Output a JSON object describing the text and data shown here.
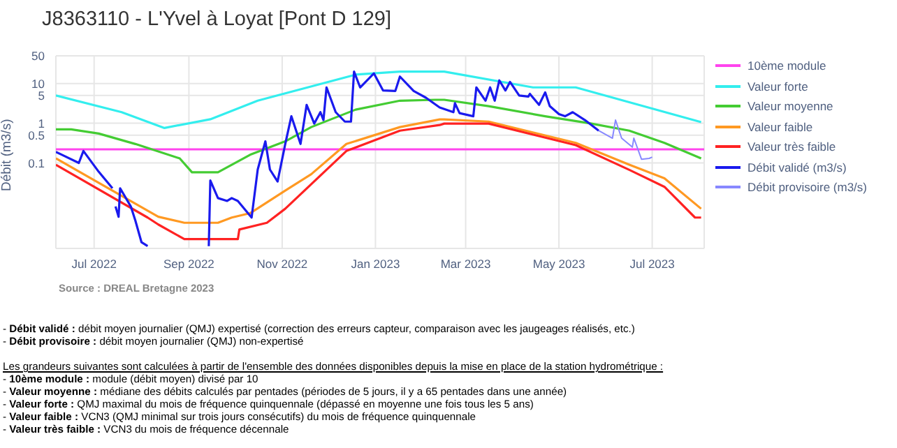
{
  "chart_data": {
    "type": "line",
    "title": "J8363110 - L'Yvel à Loyat [Pont D 129]",
    "ylabel": "Débit (m3/s)",
    "log": "y",
    "grid": true,
    "legend": "top right",
    "marker": "none",
    "line_style": "solid",
    "xlim": [
      "2022-06-06",
      "2023-08-04"
    ],
    "ylim": [
      0.0007,
      50
    ],
    "yticks": [
      0.1,
      0.5,
      1,
      5,
      10,
      50
    ],
    "xticks": [
      {
        "value": "2022-07-01",
        "label": "Jul 2022"
      },
      {
        "value": "2022-09-01",
        "label": "Sep 2022"
      },
      {
        "value": "2022-11-01",
        "label": "Nov 2022"
      },
      {
        "value": "2023-01-01",
        "label": "Jan 2023"
      },
      {
        "value": "2023-03-01",
        "label": "Mar 2023"
      },
      {
        "value": "2023-05-01",
        "label": "May 2023"
      },
      {
        "value": "2023-07-01",
        "label": "Jul 2023"
      }
    ],
    "series": [
      {
        "name": "10ème module",
        "color": "#ff44ee",
        "x": [
          "2022-06-06",
          "2023-08-04"
        ],
        "values": [
          0.22,
          0.22
        ]
      },
      {
        "name": "Valeur forte",
        "color": "#33eeee",
        "x": [
          "2022-06-06",
          "2022-07-19",
          "2022-08-16",
          "2022-09-15",
          "2022-10-16",
          "2022-12-19",
          "2023-01-17",
          "2023-02-15",
          "2023-04-14",
          "2023-05-12",
          "2023-08-02"
        ],
        "values": [
          5,
          1.9,
          0.76,
          1.26,
          3.7,
          16.8,
          20,
          20,
          8,
          8,
          1.07
        ]
      },
      {
        "name": "Valeur moyenne",
        "color": "#44cc33",
        "x": [
          "2022-06-06",
          "2022-06-16",
          "2022-07-04",
          "2022-07-28",
          "2022-08-26",
          "2022-09-03",
          "2022-09-20",
          "2022-10-11",
          "2022-11-03",
          "2022-11-20",
          "2022-12-19",
          "2023-01-17",
          "2023-02-09",
          "2023-02-15",
          "2023-03-16",
          "2023-04-22",
          "2023-05-21",
          "2023-06-16",
          "2023-07-09",
          "2023-08-02"
        ],
        "values": [
          0.7,
          0.7,
          0.55,
          0.3,
          0.13,
          0.058,
          0.058,
          0.16,
          0.35,
          0.8,
          2.2,
          3.7,
          3.9,
          3.9,
          2.7,
          1.5,
          1.0,
          0.65,
          0.32,
          0.13
        ]
      },
      {
        "name": "Valeur faible",
        "color": "#ff9922",
        "x": [
          "2022-06-06",
          "2022-08-12",
          "2022-08-29",
          "2022-09-20",
          "2022-09-29",
          "2022-10-11",
          "2022-11-03",
          "2022-11-20",
          "2022-12-13",
          "2023-01-17",
          "2023-02-12",
          "2023-02-15",
          "2023-03-16",
          "2023-05-12",
          "2023-06-16",
          "2023-07-09",
          "2023-08-02"
        ],
        "values": [
          0.13,
          0.0044,
          0.0031,
          0.0031,
          0.0042,
          0.0054,
          0.02,
          0.052,
          0.3,
          0.8,
          1.25,
          1.25,
          1.1,
          0.32,
          0.09,
          0.041,
          0.007
        ]
      },
      {
        "name": "Valeur très faible",
        "color": "#ff2222",
        "x": [
          "2022-06-06",
          "2022-08-05",
          "2022-08-12",
          "2022-08-29",
          "2022-10-03",
          "2022-10-04",
          "2022-10-22",
          "2022-11-03",
          "2022-12-13",
          "2023-01-17",
          "2023-02-12",
          "2023-02-15",
          "2023-03-16",
          "2023-05-12",
          "2023-06-16",
          "2023-07-09",
          "2023-07-29",
          "2023-08-02"
        ],
        "values": [
          0.09,
          0.0042,
          0.0028,
          0.0012,
          0.0012,
          0.0021,
          0.0031,
          0.007,
          0.2,
          0.65,
          0.9,
          0.98,
          0.98,
          0.28,
          0.067,
          0.025,
          0.0042,
          0.0042
        ]
      },
      {
        "name": "Débit validé (m3/s)",
        "color": "#1a1aee",
        "x": [
          "2022-06-06",
          "2022-06-10",
          "2022-06-21",
          "2022-06-24",
          "2022-07-04",
          "2022-07-13",
          "2022-07-14",
          "2022-07-15",
          "2022-07-17",
          "2022-07-18",
          "2022-07-25",
          "2022-07-28",
          "2022-08-01",
          "2022-08-05",
          "2022-08-06",
          "2022-09-13",
          "2022-09-14",
          "2022-09-15",
          "2022-09-20",
          "2022-09-26",
          "2022-09-29",
          "2022-10-03",
          "2022-10-12",
          "2022-10-16",
          "2022-10-21",
          "2022-10-24",
          "2022-10-29",
          "2022-11-03",
          "2022-11-07",
          "2022-11-13",
          "2022-11-17",
          "2022-11-22",
          "2022-11-26",
          "2022-11-28",
          "2022-11-30",
          "2022-12-06",
          "2022-12-12",
          "2022-12-16",
          "2022-12-18",
          "2022-12-22",
          "2022-12-31",
          "2023-01-06",
          "2023-01-14",
          "2023-01-17",
          "2023-01-26",
          "2023-02-03",
          "2023-02-12",
          "2023-02-21",
          "2023-02-22",
          "2023-02-25",
          "2023-03-06",
          "2023-03-08",
          "2023-03-14",
          "2023-03-17",
          "2023-03-20",
          "2023-03-23",
          "2023-03-27",
          "2023-03-30",
          "2023-04-05",
          "2023-04-11",
          "2023-04-12",
          "2023-04-18",
          "2023-04-22",
          "2023-04-25",
          "2023-05-01",
          "2023-05-05",
          "2023-05-10",
          "2023-05-18",
          "2023-05-27"
        ],
        "values": [
          0.19,
          0.16,
          0.1,
          0.2,
          0.06,
          0.023,
          null,
          0.008,
          0.0044,
          0.023,
          0.008,
          0.0035,
          0.001,
          0.0008,
          null,
          null,
          0.0008,
          0.036,
          0.013,
          0.011,
          0.013,
          0.011,
          0.0042,
          0.068,
          0.35,
          0.068,
          0.034,
          0.3,
          1.5,
          0.3,
          2.9,
          0.98,
          1.9,
          1.2,
          8,
          1.9,
          1.1,
          1.1,
          20,
          8,
          18,
          6.7,
          6.5,
          15,
          6.5,
          4.4,
          2.5,
          1.9,
          3.2,
          1.8,
          1.5,
          8,
          3.7,
          8,
          3.7,
          12,
          6.7,
          11,
          5,
          4.7,
          5.5,
          2.9,
          6,
          2.7,
          1.7,
          1.5,
          1.9,
          1.2,
          0.65
        ]
      },
      {
        "name": "Débit provisoire (m3/s)",
        "color": "#8888ff",
        "x": [
          "2023-05-27",
          "2023-06-05",
          "2023-06-07",
          "2023-06-11",
          "2023-06-18",
          "2023-06-19",
          "2023-06-24",
          "2023-06-29",
          "2023-07-01"
        ],
        "values": [
          0.65,
          0.42,
          1.2,
          0.42,
          0.25,
          0.42,
          0.124,
          0.13,
          0.14
        ]
      }
    ],
    "annotations": [
      "Source : DREAL Bretagne 2023",
      "- Débit validé : débit moyen journalier (QMJ) expertisé (correction des erreurs capteur, comparaison avec les jaugeages réalisés, etc.)",
      "- Débit provisoire : débit moyen journalier (QMJ) non-expertisé",
      "Les grandeurs suivantes sont calculées à partir de l'ensemble des données disponibles depuis la mise en place de la station hydrométrique :",
      "- 10ème module : module (débit moyen) divisé par 10",
      "- Valeur moyenne : médiane des débits calculés par pentades (périodes de 5 jours, il y a 65 pentades dans une année)",
      "- Valeur forte : QMJ maximal du mois de fréquence quinquennale (dépassé en moyenne une fois tous les 5 ans)",
      "- Valeur faible : VCN3 (QMJ minimal sur trois jours consécutifs) du mois de fréquence quinquennale",
      "- Valeur très faible : VCN3 du mois de fréquence décennale"
    ]
  }
}
